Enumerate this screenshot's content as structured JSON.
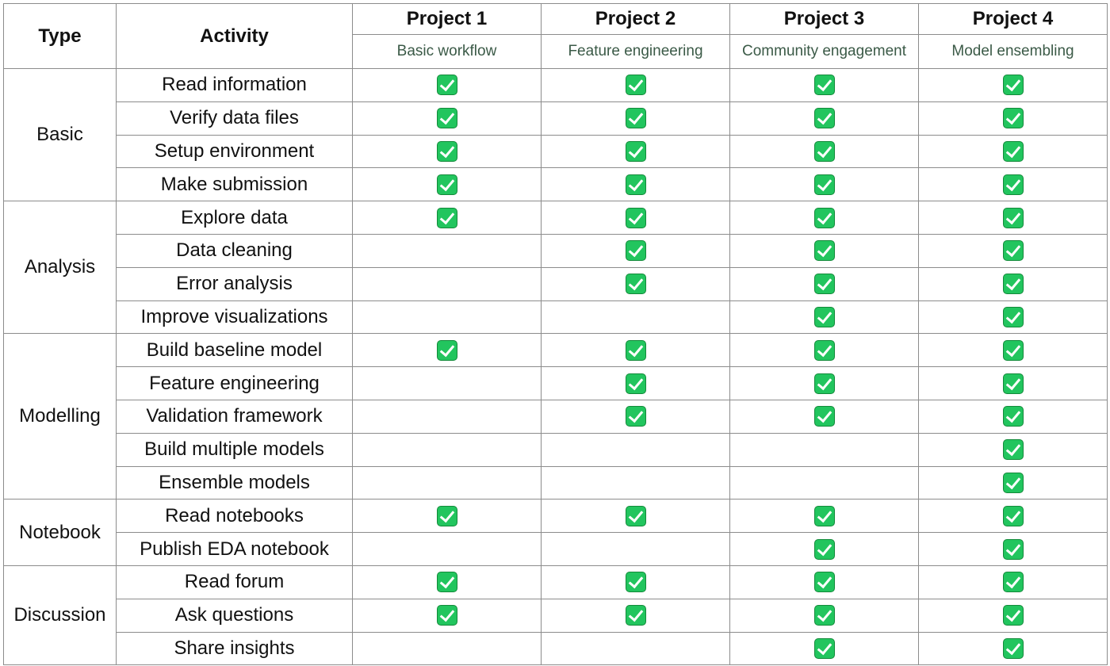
{
  "headers": {
    "type": "Type",
    "activity": "Activity",
    "projects": [
      {
        "name": "Project 1",
        "subtitle": "Basic workflow"
      },
      {
        "name": "Project 2",
        "subtitle": "Feature engineering"
      },
      {
        "name": "Project 3",
        "subtitle": "Community engagement"
      },
      {
        "name": "Project 4",
        "subtitle": "Model ensembling"
      }
    ]
  },
  "groups": [
    {
      "type": "Basic",
      "activities": [
        {
          "name": "Read information",
          "checks": [
            true,
            true,
            true,
            true
          ]
        },
        {
          "name": "Verify data files",
          "checks": [
            true,
            true,
            true,
            true
          ]
        },
        {
          "name": "Setup environment",
          "checks": [
            true,
            true,
            true,
            true
          ]
        },
        {
          "name": "Make submission",
          "checks": [
            true,
            true,
            true,
            true
          ]
        }
      ]
    },
    {
      "type": "Analysis",
      "activities": [
        {
          "name": "Explore data",
          "checks": [
            true,
            true,
            true,
            true
          ]
        },
        {
          "name": "Data cleaning",
          "checks": [
            false,
            true,
            true,
            true
          ]
        },
        {
          "name": "Error analysis",
          "checks": [
            false,
            true,
            true,
            true
          ]
        },
        {
          "name": "Improve visualizations",
          "checks": [
            false,
            false,
            true,
            true
          ]
        }
      ]
    },
    {
      "type": "Modelling",
      "activities": [
        {
          "name": "Build baseline model",
          "checks": [
            true,
            true,
            true,
            true
          ]
        },
        {
          "name": "Feature engineering",
          "checks": [
            false,
            true,
            true,
            true
          ]
        },
        {
          "name": "Validation framework",
          "checks": [
            false,
            true,
            true,
            true
          ]
        },
        {
          "name": "Build multiple models",
          "checks": [
            false,
            false,
            false,
            true
          ]
        },
        {
          "name": "Ensemble models",
          "checks": [
            false,
            false,
            false,
            true
          ]
        }
      ]
    },
    {
      "type": "Notebook",
      "activities": [
        {
          "name": "Read notebooks",
          "checks": [
            true,
            true,
            true,
            true
          ]
        },
        {
          "name": "Publish EDA notebook",
          "checks": [
            false,
            false,
            true,
            true
          ]
        }
      ]
    },
    {
      "type": "Discussion",
      "activities": [
        {
          "name": "Read forum",
          "checks": [
            true,
            true,
            true,
            true
          ]
        },
        {
          "name": "Ask questions",
          "checks": [
            true,
            true,
            true,
            true
          ]
        },
        {
          "name": "Share insights",
          "checks": [
            false,
            false,
            true,
            true
          ]
        }
      ]
    }
  ],
  "icons": {
    "check": "check-mark-icon"
  },
  "colors": {
    "check_fill": "#22c55e",
    "border": "#8c8c8c",
    "subtitle_text": "#3b5a47"
  }
}
